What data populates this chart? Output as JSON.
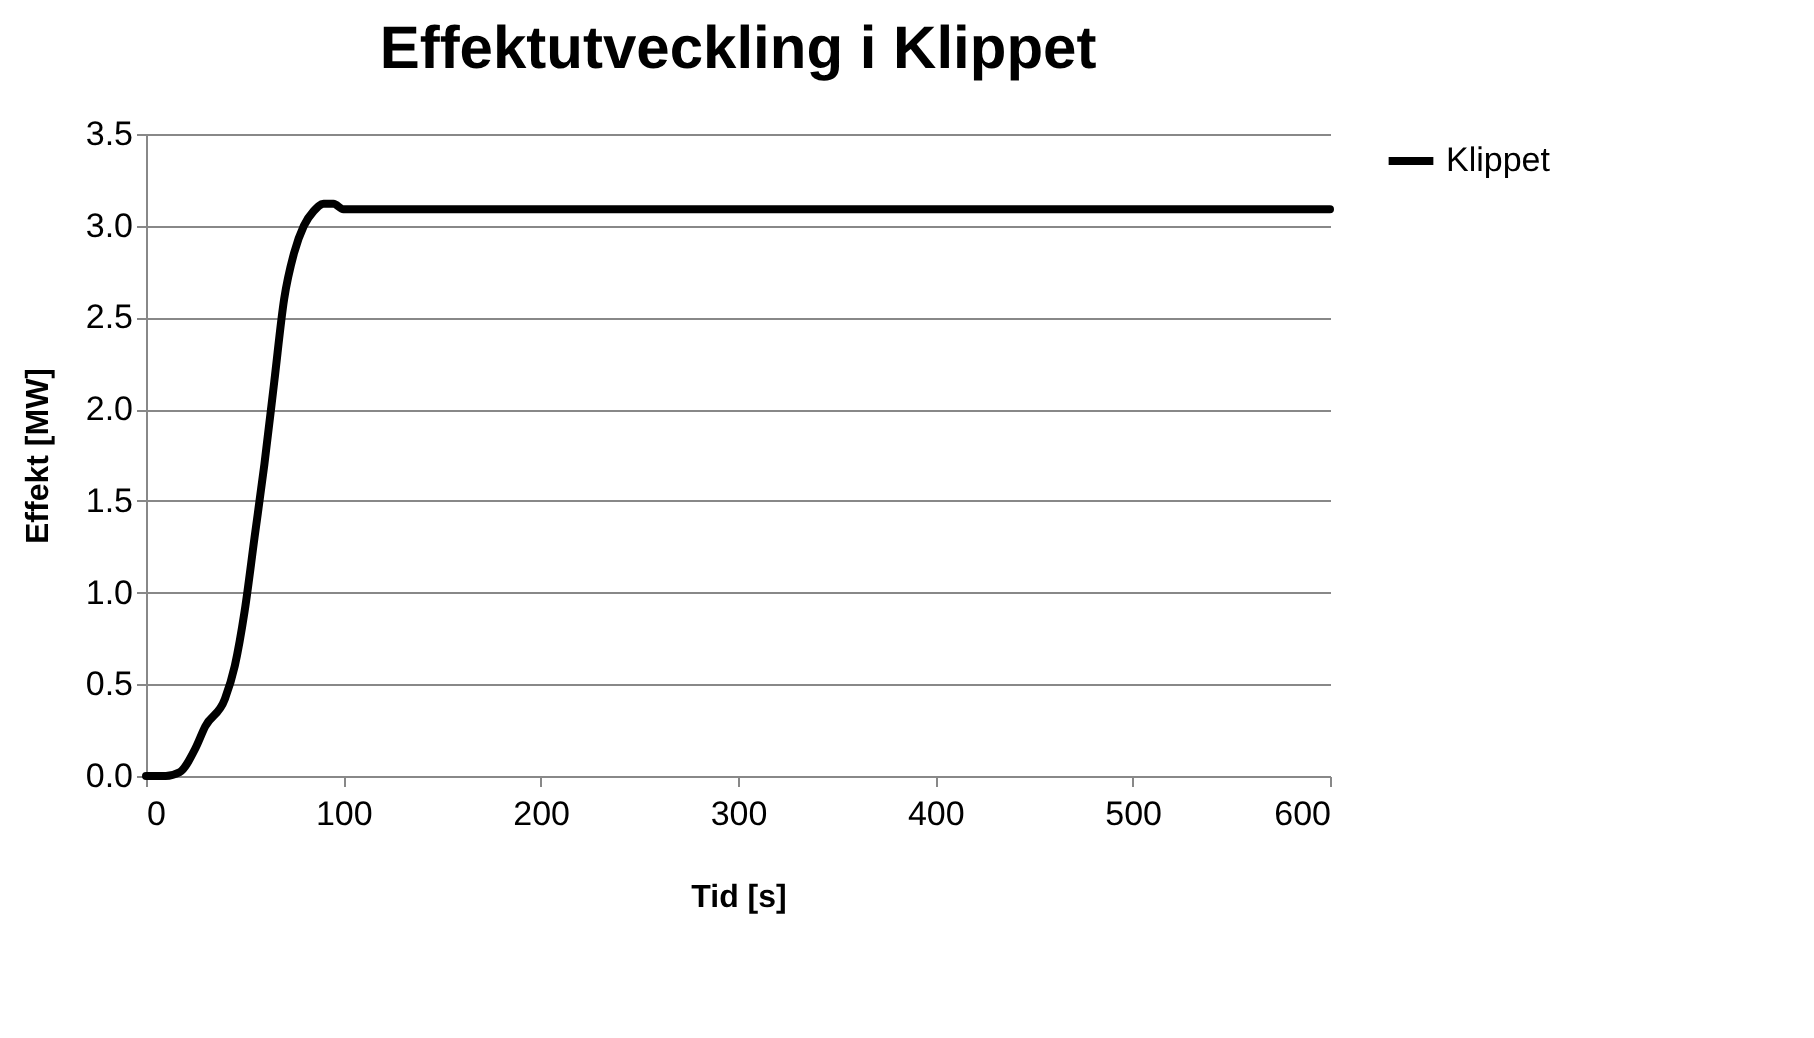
{
  "chart_data": {
    "type": "line",
    "title": "Effektutveckling i Klippet",
    "xlabel": "Tid [s]",
    "ylabel": "Effekt [MW]",
    "x": [
      0,
      10,
      17,
      25,
      30,
      40,
      45,
      50,
      55,
      60,
      65,
      70,
      75,
      80,
      85,
      90,
      95,
      100,
      110,
      600
    ],
    "series": [
      {
        "name": "Klippet",
        "color": "#000000",
        "values": [
          0,
          0,
          0.02,
          0.15,
          0.27,
          0.42,
          0.6,
          0.9,
          1.3,
          1.7,
          2.15,
          2.6,
          2.85,
          3.0,
          3.08,
          3.12,
          3.12,
          3.09,
          3.09,
          3.09
        ]
      }
    ],
    "xlim": [
      0,
      600
    ],
    "xticks": [
      0,
      100,
      200,
      300,
      400,
      500,
      600
    ],
    "ylim": [
      0,
      3.5
    ],
    "yticks": [
      {
        "value": 0,
        "label": "0.0"
      },
      {
        "value": 0.5,
        "label": "0.5"
      },
      {
        "value": 1,
        "label": "1.0"
      },
      {
        "value": 1.5,
        "label": "1.5"
      },
      {
        "value": 2,
        "label": "2.0"
      },
      {
        "value": 2.5,
        "label": "2.5"
      },
      {
        "value": 3,
        "label": "3.0"
      },
      {
        "value": 3.5,
        "label": "3.5"
      }
    ],
    "grid": "y",
    "legend": "right",
    "marker": "none",
    "line_style": "solid"
  }
}
